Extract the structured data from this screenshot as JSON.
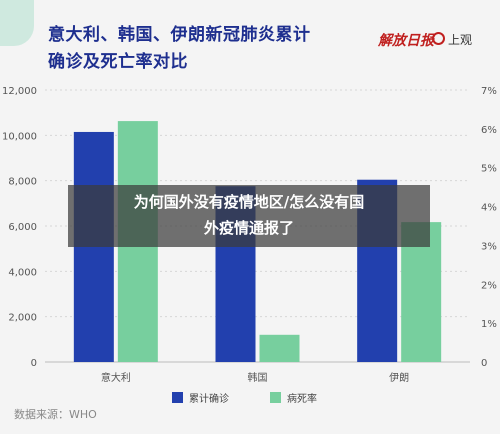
{
  "header": {
    "title_line1": "意大利、韩国、伊朗新冠肺炎累计",
    "title_line2": "确诊及死亡率对比",
    "logo_a": "解放日报",
    "logo_b": "上观"
  },
  "overlay": {
    "line1": "为何国外没有疫情地区/怎么没有国",
    "line2": "外疫情通报了"
  },
  "footer": {
    "source": "数据来源：WHO"
  },
  "colors": {
    "confirmed": "#2240ae",
    "death_rate": "#77cf9e",
    "title": "#1e2f8f"
  },
  "chart_data": {
    "type": "bar",
    "title": "意大利、韩国、伊朗新冠肺炎累计确诊及死亡率对比",
    "categories": [
      "意大利",
      "韩国",
      "伊朗"
    ],
    "series": [
      {
        "name": "累计确诊",
        "axis": "left",
        "values": [
          10149,
          7755,
          8042
        ]
      },
      {
        "name": "病死率",
        "axis": "right",
        "values": [
          6.2,
          0.7,
          3.6
        ]
      }
    ],
    "y_left": {
      "min": 0,
      "max": 12000,
      "ticks": [
        "0",
        "2,000",
        "4,000",
        "6,000",
        "8,000",
        "10,000",
        "12,000"
      ]
    },
    "y_right": {
      "min": 0,
      "max": 7,
      "ticks": [
        "0",
        "1%",
        "2%",
        "3%",
        "4%",
        "5%",
        "6%",
        "7%"
      ]
    },
    "legend_position": "bottom",
    "grid": true
  }
}
